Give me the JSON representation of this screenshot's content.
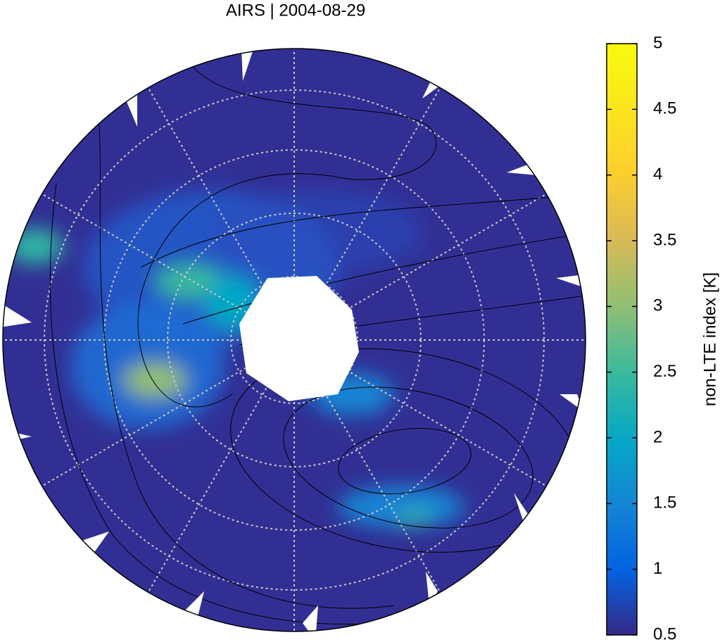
{
  "title": "AIRS | 2004-08-29",
  "colorbar": {
    "label": "non-LTE index [K]",
    "lim": [
      0.5,
      5
    ],
    "ticks": [
      0.5,
      1,
      1.5,
      2,
      2.5,
      3,
      3.5,
      4,
      4.5,
      5
    ]
  }
}
